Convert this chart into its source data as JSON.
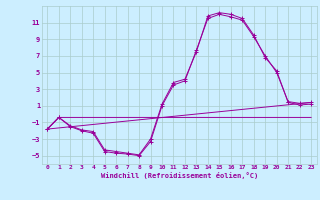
{
  "background_color": "#cceeff",
  "grid_color": "#aacccc",
  "line_color": "#990099",
  "xlabel": "Windchill (Refroidissement éolien,°C)",
  "xlim": [
    -0.5,
    23.5
  ],
  "ylim": [
    -6,
    13
  ],
  "yticks": [
    -5,
    -3,
    -1,
    1,
    3,
    5,
    7,
    9,
    11
  ],
  "xticks": [
    0,
    1,
    2,
    3,
    4,
    5,
    6,
    7,
    8,
    9,
    10,
    11,
    12,
    13,
    14,
    15,
    16,
    17,
    18,
    19,
    20,
    21,
    22,
    23
  ],
  "line1_x": [
    0,
    1,
    2,
    3,
    4,
    5,
    6,
    7,
    8,
    9,
    10,
    11,
    12,
    13,
    14,
    15,
    16,
    17,
    18,
    19,
    20,
    21,
    22,
    23
  ],
  "line1_y": [
    -1.8,
    -0.4,
    -1.5,
    -2.0,
    -2.3,
    -4.5,
    -4.7,
    -4.8,
    -5.0,
    -3.3,
    1.0,
    3.5,
    4.0,
    7.7,
    11.5,
    12.0,
    11.7,
    11.3,
    9.3,
    7.0,
    5.0,
    1.5,
    1.3,
    1.4
  ],
  "line2_x": [
    0,
    1,
    2,
    3,
    4,
    5,
    6,
    7,
    8,
    9,
    10,
    11,
    12,
    13,
    14,
    15,
    16,
    17,
    18,
    19,
    20,
    21,
    22,
    23
  ],
  "line2_y": [
    -1.8,
    -0.4,
    -1.4,
    -1.9,
    -2.1,
    -4.3,
    -4.5,
    -4.7,
    -4.9,
    -3.0,
    1.2,
    3.8,
    4.2,
    7.5,
    11.8,
    12.2,
    12.0,
    11.5,
    9.5,
    6.8,
    5.2,
    1.4,
    1.1,
    1.2
  ],
  "line3_x": [
    0,
    23
  ],
  "line3_y": [
    -1.8,
    1.4
  ],
  "line4_x": [
    0,
    1,
    23
  ],
  "line4_y": [
    -1.8,
    -0.4,
    -0.4
  ]
}
